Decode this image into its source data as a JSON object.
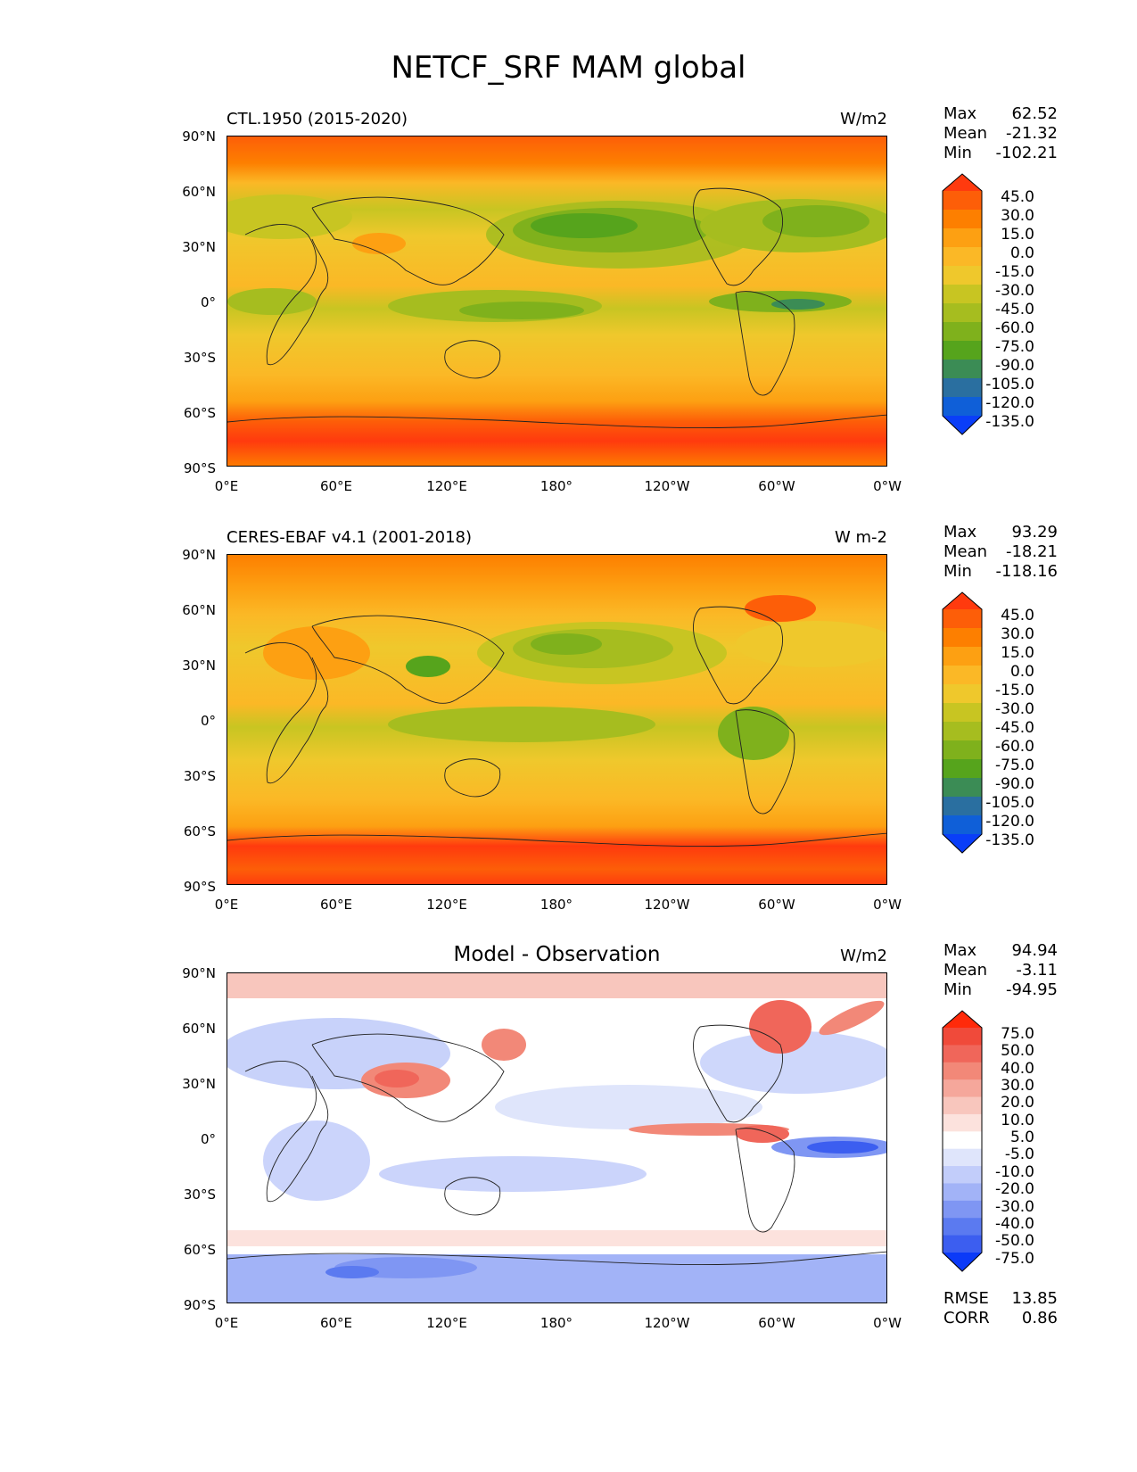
{
  "figure": {
    "title": "NETCF_SRF MAM global"
  },
  "axes": {
    "lat_labels": [
      "90°N",
      "60°N",
      "30°N",
      "0°",
      "30°S",
      "60°S",
      "90°S"
    ],
    "lon_labels": [
      "0°E",
      "60°E",
      "120°E",
      "180°",
      "120°W",
      "60°W",
      "0°W"
    ]
  },
  "panels": [
    {
      "title": "CTL.1950 (2015-2020)",
      "units": "W/m2",
      "stats": [
        {
          "label": "Max",
          "value": "62.52"
        },
        {
          "label": "Mean",
          "value": "-21.32"
        },
        {
          "label": "Min",
          "value": "-102.21"
        }
      ],
      "colorbar": {
        "labels": [
          "45.0",
          "30.0",
          "15.0",
          "0.0",
          "-15.0",
          "-30.0",
          "-45.0",
          "-60.0",
          "-75.0",
          "-90.0",
          "-105.0",
          "-120.0",
          "-135.0"
        ],
        "colors": [
          "#ff3a0e",
          "#fd5e08",
          "#fd7f00",
          "#fda012",
          "#fbb826",
          "#efc82c",
          "#c8c522",
          "#a6bd1f",
          "#7fb11c",
          "#56a41c",
          "#3b8c55",
          "#2a6fa0",
          "#0f5fd8",
          "#0a3ef8"
        ]
      }
    },
    {
      "title": "CERES-EBAF v4.1 (2001-2018)",
      "units": "W m-2",
      "stats": [
        {
          "label": "Max",
          "value": "93.29"
        },
        {
          "label": "Mean",
          "value": "-18.21"
        },
        {
          "label": "Min",
          "value": "-118.16"
        }
      ],
      "colorbar": {
        "labels": [
          "45.0",
          "30.0",
          "15.0",
          "0.0",
          "-15.0",
          "-30.0",
          "-45.0",
          "-60.0",
          "-75.0",
          "-90.0",
          "-105.0",
          "-120.0",
          "-135.0"
        ],
        "colors": [
          "#ff3a0e",
          "#fd5e08",
          "#fd7f00",
          "#fda012",
          "#fbb826",
          "#efc82c",
          "#c8c522",
          "#a6bd1f",
          "#7fb11c",
          "#56a41c",
          "#3b8c55",
          "#2a6fa0",
          "#0f5fd8",
          "#0a3ef8"
        ]
      }
    },
    {
      "title": "Model - Observation",
      "units": "W/m2",
      "stats": [
        {
          "label": "Max",
          "value": "94.94"
        },
        {
          "label": "Mean",
          "value": "-3.11"
        },
        {
          "label": "Min",
          "value": "-94.95"
        }
      ],
      "metrics": [
        {
          "label": "RMSE",
          "value": "13.85"
        },
        {
          "label": "CORR",
          "value": "0.86"
        }
      ],
      "colorbar": {
        "labels": [
          "75.0",
          "50.0",
          "40.0",
          "30.0",
          "20.0",
          "10.0",
          "5.0",
          "-5.0",
          "-10.0",
          "-20.0",
          "-30.0",
          "-40.0",
          "-50.0",
          "-75.0"
        ],
        "colors": [
          "#ff2a0a",
          "#f04a3a",
          "#f0665a",
          "#f28878",
          "#f5a79b",
          "#f8c6bd",
          "#fce2dd",
          "#ffffff",
          "#dfe5fb",
          "#c2cdfa",
          "#a2b3f7",
          "#7f96f3",
          "#5b7af0",
          "#3c5ef0",
          "#0b3af8"
        ]
      }
    }
  ]
}
